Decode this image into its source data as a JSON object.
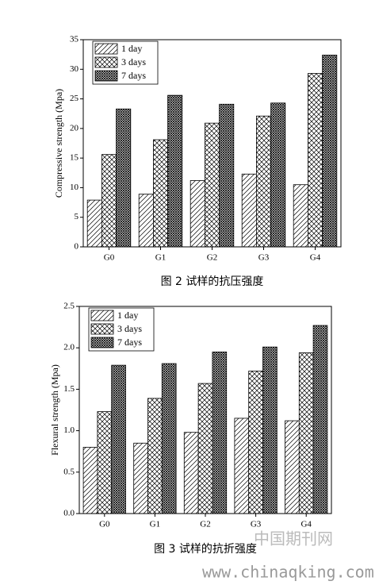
{
  "chart_data": [
    {
      "type": "bar",
      "title": "图 2 试样的抗压强度",
      "y_label": "Compressive strength (Mpa)",
      "categories": [
        "G0",
        "G1",
        "G2",
        "G3",
        "G4"
      ],
      "series": [
        {
          "name": "1 day",
          "color": "#000000",
          "pattern": "diagonal",
          "values": [
            7.9,
            8.9,
            11.2,
            12.3,
            10.5
          ]
        },
        {
          "name": "3 days",
          "color": "#000000",
          "pattern": "cross",
          "values": [
            15.6,
            18.1,
            20.9,
            22.1,
            29.3
          ]
        },
        {
          "name": "7 days",
          "color": "#000000",
          "pattern": "dense",
          "values": [
            23.3,
            25.6,
            24.1,
            24.3,
            32.4
          ]
        }
      ],
      "ylim": [
        0,
        35
      ],
      "yticks": [
        0,
        5,
        10,
        15,
        20,
        25,
        30,
        35
      ],
      "legend": "upper left"
    },
    {
      "type": "bar",
      "title": "图 3 试样的抗折强度",
      "y_label": "Flexural strength (Mpa)",
      "categories": [
        "G0",
        "G1",
        "G2",
        "G3",
        "G4"
      ],
      "series": [
        {
          "name": "1 day",
          "color": "#000000",
          "pattern": "diagonal",
          "values": [
            0.8,
            0.85,
            0.98,
            1.15,
            1.12
          ]
        },
        {
          "name": "3 days",
          "color": "#000000",
          "pattern": "cross",
          "values": [
            1.23,
            1.39,
            1.57,
            1.72,
            1.94
          ]
        },
        {
          "name": "7 days",
          "color": "#000000",
          "pattern": "dense",
          "values": [
            1.79,
            1.81,
            1.95,
            2.01,
            2.27
          ]
        }
      ],
      "ylim": [
        0,
        2.5
      ],
      "yticks": [
        {
          "value": 0,
          "label": "0.0"
        },
        0.5,
        {
          "value": 1,
          "label": "1.0"
        },
        1.5,
        {
          "value": 2,
          "label": "2.0"
        },
        2.5
      ],
      "legend": "upper left"
    }
  ],
  "watermark": {
    "cn": "中国期刊网",
    "url": "www.chinaqking.com"
  }
}
